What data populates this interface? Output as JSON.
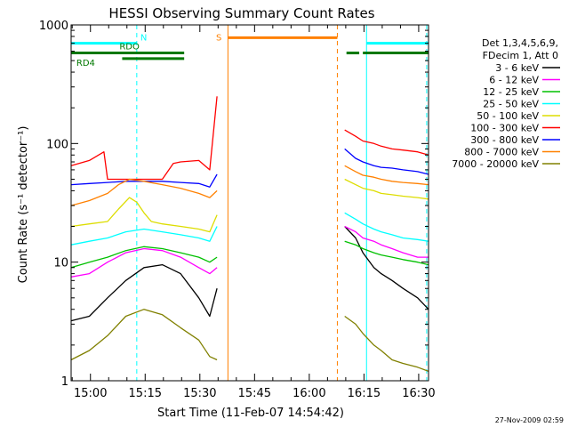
{
  "chart_data": {
    "type": "line",
    "title": "HESSI Observing Summary Count Rates",
    "xlabel": "Start Time (11-Feb-07 14:54:42)",
    "ylabel": "Count Rate (s⁻¹ detector⁻¹)",
    "yscale": "log",
    "ylim": [
      1,
      1000
    ],
    "xlim_minutes": [
      0,
      98
    ],
    "x_unit": "minutes after 14:54:42",
    "yticks": [
      "1",
      "10",
      "100",
      "1000"
    ],
    "xticks": [
      "15:00",
      "15:15",
      "15:30",
      "15:45",
      "16:00",
      "16:15",
      "16:30"
    ],
    "xtick_minutes": [
      5.3,
      20.3,
      35.3,
      50.3,
      65.3,
      80.3,
      95.3
    ],
    "legend_header": [
      "Det 1,3,4,5,6,9,",
      "FDecim 1, Att 0"
    ],
    "legend_position": "right-outside",
    "series": [
      {
        "name": "3 - 6 keV",
        "color": "#000000",
        "x": [
          0,
          5,
          10,
          15,
          20,
          25,
          30,
          35,
          38,
          40,
          73,
          75,
          78,
          80,
          83,
          85,
          88,
          91,
          95,
          98
        ],
        "y": [
          3.2,
          3.5,
          5,
          7,
          9,
          9.5,
          8,
          5,
          3.5,
          6,
          null,
          20,
          16,
          12,
          9,
          8,
          7,
          6,
          5,
          4
        ]
      },
      {
        "name": "6 - 12 keV",
        "color": "#ff00ff",
        "x": [
          0,
          5,
          10,
          15,
          20,
          25,
          30,
          35,
          38,
          40,
          73,
          75,
          78,
          80,
          83,
          85,
          88,
          91,
          95,
          98
        ],
        "y": [
          7.5,
          8,
          10,
          12,
          13,
          12.5,
          11,
          9,
          8,
          9,
          null,
          20,
          18,
          16,
          15,
          14,
          13,
          12,
          11,
          11
        ]
      },
      {
        "name": "12 - 25 keV",
        "color": "#00c000",
        "x": [
          0,
          5,
          10,
          15,
          20,
          25,
          30,
          35,
          38,
          40,
          73,
          75,
          78,
          80,
          83,
          85,
          88,
          91,
          95,
          98
        ],
        "y": [
          9,
          10,
          11,
          12.5,
          13.5,
          13,
          12,
          11,
          10,
          11,
          null,
          15,
          14,
          13,
          12,
          11.5,
          11,
          10.5,
          10,
          9.5
        ]
      },
      {
        "name": "25 - 50 keV",
        "color": "#00ffff",
        "x": [
          0,
          5,
          10,
          15,
          20,
          25,
          30,
          35,
          38,
          40,
          73,
          75,
          78,
          80,
          83,
          85,
          88,
          91,
          95,
          98
        ],
        "y": [
          14,
          15,
          16,
          18,
          19,
          18,
          17,
          16,
          15,
          20,
          null,
          26,
          23,
          21,
          19,
          18,
          17,
          16,
          15.5,
          15
        ]
      },
      {
        "name": "50 - 100 keV",
        "color": "#dddd00",
        "x": [
          0,
          5,
          10,
          13,
          16,
          18,
          20,
          22,
          25,
          30,
          35,
          38,
          40,
          73,
          75,
          78,
          80,
          83,
          85,
          88,
          91,
          95,
          98
        ],
        "y": [
          20,
          21,
          22,
          28,
          35,
          32,
          26,
          22,
          21,
          20,
          19,
          18,
          25,
          null,
          50,
          45,
          42,
          40,
          38,
          37,
          36,
          35,
          34
        ]
      },
      {
        "name": "100 - 300 keV",
        "color": "#ff0000",
        "x": [
          0,
          5,
          9,
          10,
          15,
          20,
          25,
          28,
          30,
          35,
          38,
          40,
          73,
          75,
          78,
          80,
          83,
          85,
          88,
          91,
          95,
          98
        ],
        "y": [
          65,
          72,
          85,
          50,
          50,
          50,
          50,
          68,
          70,
          72,
          60,
          250,
          null,
          130,
          115,
          105,
          100,
          95,
          90,
          88,
          85,
          80
        ]
      },
      {
        "name": "300 - 800 keV",
        "color": "#0000ff",
        "x": [
          0,
          5,
          10,
          15,
          20,
          25,
          30,
          35,
          38,
          40,
          73,
          75,
          78,
          80,
          83,
          85,
          88,
          91,
          95,
          98
        ],
        "y": [
          45,
          46,
          47,
          48,
          48,
          48,
          47,
          46,
          43,
          55,
          null,
          90,
          75,
          70,
          65,
          63,
          62,
          60,
          58,
          55
        ]
      },
      {
        "name": "800 - 7000 keV",
        "color": "#ff8000",
        "x": [
          0,
          5,
          10,
          13,
          16,
          20,
          25,
          30,
          35,
          38,
          40,
          73,
          75,
          78,
          80,
          83,
          85,
          88,
          91,
          95,
          98
        ],
        "y": [
          30,
          33,
          38,
          45,
          50,
          48,
          45,
          42,
          38,
          35,
          40,
          null,
          65,
          58,
          54,
          52,
          50,
          48,
          47,
          46,
          45
        ]
      },
      {
        "name": "7000 - 20000 keV",
        "color": "#808000",
        "x": [
          0,
          5,
          10,
          15,
          20,
          25,
          30,
          35,
          38,
          40,
          73,
          75,
          78,
          80,
          83,
          85,
          88,
          91,
          95,
          98
        ],
        "y": [
          1.5,
          1.8,
          2.4,
          3.5,
          4,
          3.6,
          2.8,
          2.2,
          1.6,
          1.5,
          null,
          3.5,
          3,
          2.5,
          2,
          1.8,
          1.5,
          1.4,
          1.3,
          1.2
        ]
      }
    ],
    "flag_bars": [
      {
        "label": "N",
        "color": "#00ffff",
        "level": 700,
        "segments": [
          [
            0,
            18
          ],
          [
            81,
            98
          ]
        ]
      },
      {
        "label": "RDO",
        "color": "#007800",
        "level": 580,
        "segments": [
          [
            0,
            31
          ],
          [
            75.5,
            79
          ],
          [
            80,
            98
          ]
        ]
      },
      {
        "label": "RD4",
        "color": "#007800",
        "level": 520,
        "segments": [
          [
            14,
            31
          ]
        ]
      },
      {
        "label": "S",
        "color": "#ff8000",
        "level": 780,
        "segments": [
          [
            43,
            73
          ]
        ]
      }
    ],
    "vertical_markers": [
      {
        "color": "#00ffff",
        "style": "solid",
        "x": 0
      },
      {
        "color": "#00ffff",
        "style": "dashed",
        "x": 18
      },
      {
        "color": "#ff8000",
        "style": "solid",
        "x": 43
      },
      {
        "color": "#ff8000",
        "style": "dashed",
        "x": 73
      },
      {
        "color": "#00ffff",
        "style": "solid",
        "x": 81
      },
      {
        "color": "#00ffff",
        "style": "dashed",
        "x": 97.5
      }
    ],
    "timestamp": "27-Nov-2009 02:59"
  }
}
